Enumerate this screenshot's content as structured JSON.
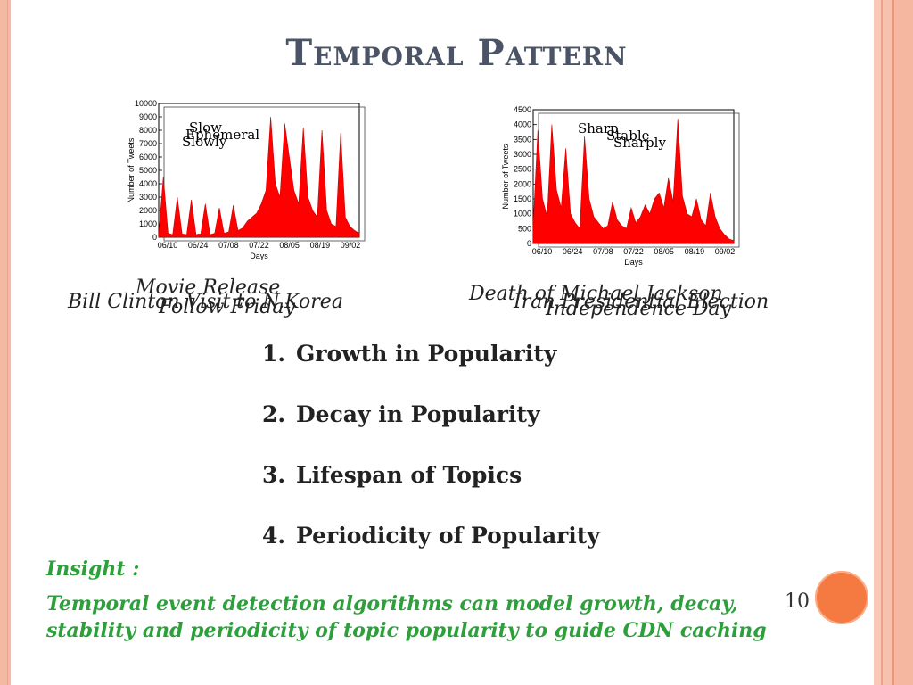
{
  "slide": {
    "title": "Temporal Pattern",
    "page_number": "10",
    "accent_color": "#f47a42",
    "insight_color": "#2da03c"
  },
  "captions": {
    "left": [
      "Movie Release",
      "Bill Clinton Visit to N.Korea",
      "Follow Friday"
    ],
    "right": [
      "Death of Michael Jackson",
      "Iran Presidential Election",
      "Independence Day"
    ]
  },
  "list": [
    {
      "num": "1.",
      "text": "Growth in Popularity"
    },
    {
      "num": "2.",
      "text": "Decay in Popularity"
    },
    {
      "num": "3.",
      "text": "Lifespan of Topics"
    },
    {
      "num": "4.",
      "text": "Periodicity of Popularity"
    }
  ],
  "insight": {
    "label": "Insight :",
    "text": "Temporal event detection algorithms can model growth, decay, stability and  periodicity of topic popularity to guide CDN caching"
  },
  "chart_data": [
    {
      "type": "area",
      "xlabel": "Days",
      "ylabel": "Number of Tweets",
      "x_ticks": [
        "06/10",
        "06/24",
        "07/08",
        "07/22",
        "08/05",
        "08/19",
        "09/02"
      ],
      "y_ticks": [
        "0",
        "1000",
        "2000",
        "3000",
        "4000",
        "5000",
        "6000",
        "7000",
        "8000",
        "9000",
        "10000"
      ],
      "annotations": [
        "Slow",
        "Ephemeral",
        "Slowly"
      ],
      "ylim": [
        0,
        10000
      ],
      "series": [
        {
          "name": "",
          "color": "#ff0000",
          "values": [
            200,
            4500,
            300,
            200,
            3000,
            250,
            200,
            2800,
            200,
            250,
            2500,
            200,
            300,
            2200,
            300,
            400,
            2400,
            500,
            700,
            1200,
            1500,
            1800,
            2500,
            3500,
            9000,
            4000,
            3000,
            8500,
            6000,
            3500,
            2500,
            8200,
            3000,
            2000,
            1500,
            8000,
            2000,
            1000,
            800,
            7800,
            1500,
            800,
            500,
            300
          ]
        }
      ]
    },
    {
      "type": "area",
      "xlabel": "Days",
      "ylabel": "Number of Tweets",
      "x_ticks": [
        "06/10",
        "06/24",
        "07/08",
        "07/22",
        "08/05",
        "08/19",
        "09/02"
      ],
      "y_ticks": [
        "0",
        "500",
        "1000",
        "1500",
        "2000",
        "2500",
        "3000",
        "3500",
        "4000",
        "4500"
      ],
      "annotations": [
        "Sharp",
        "Stable",
        "Sharply"
      ],
      "ylim": [
        0,
        4500
      ],
      "series": [
        {
          "name": "",
          "color": "#ff0000",
          "values": [
            600,
            3800,
            1500,
            900,
            4000,
            1800,
            1200,
            3200,
            1000,
            700,
            500,
            3600,
            1500,
            900,
            700,
            500,
            600,
            1400,
            800,
            600,
            500,
            1200,
            700,
            900,
            1300,
            1000,
            1500,
            1700,
            1200,
            2200,
            1400,
            4200,
            1600,
            1000,
            900,
            1500,
            800,
            600,
            1700,
            900,
            500,
            300,
            150,
            100
          ]
        }
      ]
    }
  ]
}
